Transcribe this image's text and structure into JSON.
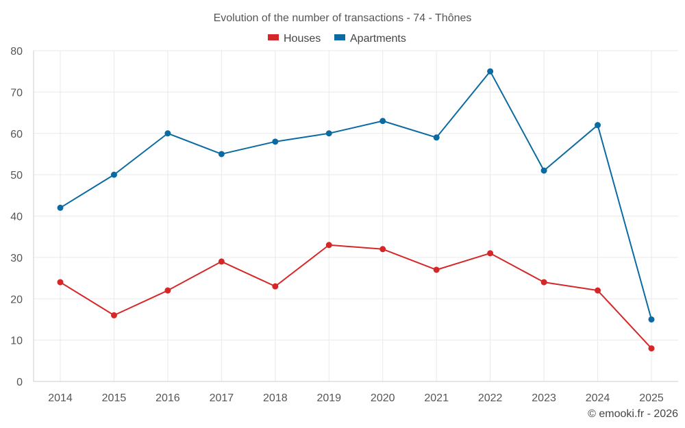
{
  "chart_data": {
    "type": "line",
    "title": "Evolution of the number of transactions - 74 - Thônes",
    "categories": [
      "2014",
      "2015",
      "2016",
      "2017",
      "2018",
      "2019",
      "2020",
      "2021",
      "2022",
      "2023",
      "2024",
      "2025"
    ],
    "series": [
      {
        "name": "Houses",
        "color": "#d62728",
        "values": [
          24,
          16,
          22,
          29,
          23,
          33,
          32,
          27,
          31,
          24,
          22,
          8
        ]
      },
      {
        "name": "Apartments",
        "color": "#0a6aa1",
        "values": [
          42,
          50,
          60,
          55,
          58,
          60,
          63,
          59,
          75,
          51,
          62,
          15
        ]
      }
    ],
    "ylim": [
      0,
      80
    ],
    "yticks": [
      0,
      10,
      20,
      30,
      40,
      50,
      60,
      70,
      80
    ],
    "xlabel": "",
    "ylabel": "",
    "grid": true,
    "legend_position": "top-center"
  },
  "credit": "© emooki.fr - 2026"
}
